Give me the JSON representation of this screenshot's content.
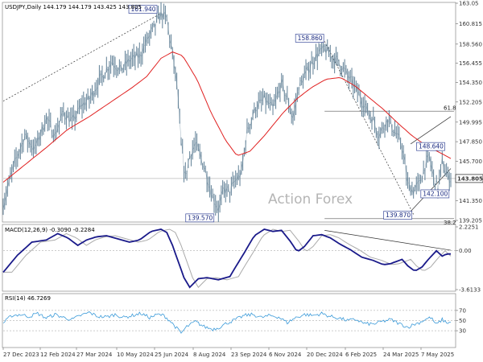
{
  "chart_data": {
    "type": "line",
    "symbol_line": {
      "symbol": "USDJPY,Daily",
      "open": "144.179",
      "high": "144.179",
      "low": "143.425",
      "close": "143.805"
    },
    "watermark": "Action Forex",
    "x_tick_labels": [
      "27 Dec 2023",
      "12 Feb 2024",
      "27 Mar 2024",
      "10 May 2024",
      "25 Jun 2024",
      "8 Aug 2024",
      "23 Sep 2024",
      "6 Nov 2024",
      "20 Dec 2024",
      "6 Feb 2025",
      "24 Mar 2025",
      "7 May 2025"
    ],
    "price_panel": {
      "y_range": [
        139.205,
        163.05
      ],
      "y_tick_labels": [
        "163.05",
        "160.815",
        "158.560",
        "156.455",
        "154.350",
        "152.205",
        "149.995",
        "147.850",
        "145.700",
        "143.805",
        "141.350",
        "139.205"
      ],
      "current_price": "143.805",
      "ma_line_color": "#e02020",
      "price_color": "#5f7f95",
      "annotations": [
        "161.940",
        "158.860",
        "148.640",
        "142.100",
        "139.870",
        "139.570"
      ],
      "fib_labels": [
        "61.8",
        "38.2"
      ],
      "close_anchors": [
        [
          0,
          141.0
        ],
        [
          8,
          145.5
        ],
        [
          15,
          148.5
        ],
        [
          22,
          147.0
        ],
        [
          30,
          150.4
        ],
        [
          36,
          148.6
        ],
        [
          42,
          151.1
        ],
        [
          48,
          150.0
        ],
        [
          55,
          151.9
        ],
        [
          60,
          152.5
        ],
        [
          66,
          154.3
        ],
        [
          72,
          155.8
        ],
        [
          76,
          156.7
        ],
        [
          82,
          155.7
        ],
        [
          88,
          156.8
        ],
        [
          95,
          157.2
        ],
        [
          100,
          158.9
        ],
        [
          106,
          160.6
        ],
        [
          110,
          161.9
        ],
        [
          114,
          161.3
        ],
        [
          118,
          157.4
        ],
        [
          121,
          154.3
        ],
        [
          124,
          147.6
        ],
        [
          127,
          143.9
        ],
        [
          130,
          146.3
        ],
        [
          134,
          147.6
        ],
        [
          140,
          145.2
        ],
        [
          146,
          141.8
        ],
        [
          150,
          140.5
        ],
        [
          154,
          142.6
        ],
        [
          158,
          142.4
        ],
        [
          162,
          143.6
        ],
        [
          166,
          144.3
        ],
        [
          170,
          149.0
        ],
        [
          176,
          151.6
        ],
        [
          182,
          152.5
        ],
        [
          188,
          151.4
        ],
        [
          194,
          154.2
        ],
        [
          198,
          152.5
        ],
        [
          202,
          150.4
        ],
        [
          206,
          153.8
        ],
        [
          212,
          155.6
        ],
        [
          218,
          157.3
        ],
        [
          224,
          158.0
        ],
        [
          228,
          157.3
        ],
        [
          234,
          156.6
        ],
        [
          240,
          155.1
        ],
        [
          246,
          153.6
        ],
        [
          252,
          151.8
        ],
        [
          258,
          150.2
        ],
        [
          262,
          148.6
        ],
        [
          268,
          150.4
        ],
        [
          272,
          149.2
        ],
        [
          278,
          147.4
        ],
        [
          282,
          143.1
        ],
        [
          286,
          142.5
        ],
        [
          290,
          143.2
        ],
        [
          294,
          145.2
        ],
        [
          297,
          146.2
        ],
        [
          300,
          143.9
        ],
        [
          303,
          142.7
        ],
        [
          306,
          145.6
        ],
        [
          309,
          144.2
        ],
        [
          312,
          143.8
        ]
      ],
      "ma_anchors": [
        [
          0,
          143.4
        ],
        [
          15,
          145.3
        ],
        [
          30,
          147.2
        ],
        [
          45,
          149.2
        ],
        [
          60,
          150.6
        ],
        [
          75,
          152.2
        ],
        [
          90,
          153.8
        ],
        [
          100,
          155.0
        ],
        [
          110,
          157.0
        ],
        [
          118,
          157.7
        ],
        [
          125,
          157.3
        ],
        [
          135,
          154.7
        ],
        [
          145,
          151.0
        ],
        [
          155,
          148.0
        ],
        [
          163,
          146.3
        ],
        [
          172,
          146.8
        ],
        [
          182,
          148.5
        ],
        [
          195,
          151.0
        ],
        [
          205,
          152.6
        ],
        [
          215,
          153.8
        ],
        [
          225,
          154.7
        ],
        [
          235,
          154.9
        ],
        [
          245,
          154.0
        ],
        [
          255,
          152.7
        ],
        [
          265,
          151.4
        ],
        [
          275,
          149.9
        ],
        [
          285,
          148.5
        ],
        [
          295,
          147.4
        ],
        [
          305,
          146.6
        ],
        [
          312,
          146.0
        ]
      ]
    },
    "macd_panel": {
      "title": "MACD(12,26,9) -0.3090 -0.2284",
      "y_range": [
        -3.6133,
        2.2251
      ],
      "y_tick_labels": [
        "2.2251",
        "0.00",
        "-3.6133"
      ],
      "macd_color": "#1a1a8a",
      "signal_color": "#aaaaaa",
      "anchors": [
        [
          0,
          -2.0
        ],
        [
          10,
          -0.4
        ],
        [
          20,
          0.8
        ],
        [
          30,
          1.0
        ],
        [
          38,
          1.6
        ],
        [
          45,
          1.2
        ],
        [
          52,
          0.5
        ],
        [
          58,
          1.0
        ],
        [
          65,
          1.3
        ],
        [
          72,
          1.4
        ],
        [
          80,
          1.1
        ],
        [
          88,
          0.8
        ],
        [
          95,
          1.0
        ],
        [
          103,
          1.8
        ],
        [
          110,
          2.0
        ],
        [
          114,
          1.7
        ],
        [
          118,
          0.5
        ],
        [
          122,
          -1.0
        ],
        [
          126,
          -2.5
        ],
        [
          130,
          -3.4
        ],
        [
          136,
          -2.6
        ],
        [
          142,
          -2.5
        ],
        [
          150,
          -2.7
        ],
        [
          158,
          -2.4
        ],
        [
          162,
          -1.5
        ],
        [
          168,
          -0.2
        ],
        [
          175,
          1.4
        ],
        [
          182,
          2.0
        ],
        [
          188,
          1.8
        ],
        [
          194,
          1.9
        ],
        [
          200,
          0.9
        ],
        [
          205,
          -0.1
        ],
        [
          210,
          0.4
        ],
        [
          216,
          1.4
        ],
        [
          222,
          1.5
        ],
        [
          228,
          1.2
        ],
        [
          235,
          0.6
        ],
        [
          242,
          0.1
        ],
        [
          250,
          -0.6
        ],
        [
          258,
          -0.9
        ],
        [
          265,
          -1.3
        ],
        [
          270,
          -1.2
        ],
        [
          278,
          -0.8
        ],
        [
          282,
          -1.4
        ],
        [
          287,
          -1.9
        ],
        [
          292,
          -1.5
        ],
        [
          297,
          -0.7
        ],
        [
          302,
          0.0
        ],
        [
          306,
          -0.5
        ],
        [
          309,
          -0.3
        ],
        [
          312,
          -0.3
        ]
      ]
    },
    "rsi_panel": {
      "title": "RSI(14) 46.7269",
      "y_range": [
        0,
        100
      ],
      "levels": [
        30,
        50,
        70
      ],
      "y_tick_labels": [
        "70",
        "50",
        "30"
      ],
      "rsi_color": "#3a9ad9",
      "anchors": [
        [
          0,
          45
        ],
        [
          6,
          60
        ],
        [
          12,
          62
        ],
        [
          18,
          58
        ],
        [
          24,
          64
        ],
        [
          30,
          55
        ],
        [
          36,
          62
        ],
        [
          42,
          56
        ],
        [
          48,
          52
        ],
        [
          54,
          60
        ],
        [
          60,
          66
        ],
        [
          66,
          58
        ],
        [
          72,
          57
        ],
        [
          78,
          62
        ],
        [
          84,
          56
        ],
        [
          90,
          60
        ],
        [
          96,
          64
        ],
        [
          102,
          56
        ],
        [
          108,
          62
        ],
        [
          112,
          60
        ],
        [
          116,
          50
        ],
        [
          120,
          38
        ],
        [
          124,
          25
        ],
        [
          128,
          38
        ],
        [
          134,
          48
        ],
        [
          140,
          38
        ],
        [
          146,
          33
        ],
        [
          150,
          36
        ],
        [
          156,
          45
        ],
        [
          162,
          52
        ],
        [
          168,
          60
        ],
        [
          174,
          62
        ],
        [
          180,
          56
        ],
        [
          186,
          60
        ],
        [
          192,
          57
        ],
        [
          198,
          46
        ],
        [
          204,
          56
        ],
        [
          210,
          62
        ],
        [
          216,
          60
        ],
        [
          222,
          64
        ],
        [
          228,
          58
        ],
        [
          234,
          55
        ],
        [
          240,
          50
        ],
        [
          246,
          52
        ],
        [
          252,
          44
        ],
        [
          258,
          43
        ],
        [
          264,
          48
        ],
        [
          270,
          52
        ],
        [
          276,
          44
        ],
        [
          282,
          37
        ],
        [
          286,
          42
        ],
        [
          290,
          46
        ],
        [
          294,
          52
        ],
        [
          298,
          56
        ],
        [
          302,
          42
        ],
        [
          306,
          52
        ],
        [
          309,
          46
        ],
        [
          312,
          46.7
        ]
      ]
    }
  }
}
